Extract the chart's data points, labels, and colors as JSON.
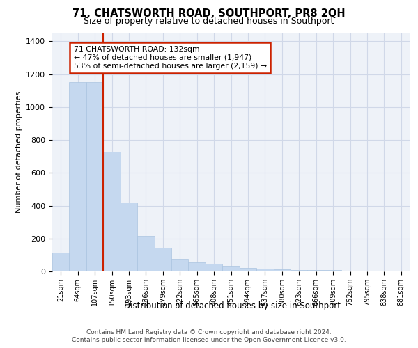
{
  "title": "71, CHATSWORTH ROAD, SOUTHPORT, PR8 2QH",
  "subtitle": "Size of property relative to detached houses in Southport",
  "xlabel": "Distribution of detached houses by size in Southport",
  "ylabel": "Number of detached properties",
  "categories": [
    "21sqm",
    "64sqm",
    "107sqm",
    "150sqm",
    "193sqm",
    "236sqm",
    "279sqm",
    "322sqm",
    "365sqm",
    "408sqm",
    "451sqm",
    "494sqm",
    "537sqm",
    "580sqm",
    "623sqm",
    "666sqm",
    "709sqm",
    "752sqm",
    "795sqm",
    "838sqm",
    "881sqm"
  ],
  "values": [
    115,
    1150,
    1150,
    730,
    420,
    215,
    145,
    75,
    55,
    45,
    35,
    20,
    15,
    13,
    10,
    10,
    10,
    2,
    0,
    0,
    5
  ],
  "bar_color": "#c5d8ef",
  "bar_edge_color": "#aac4e0",
  "annotation_line1": "71 CHATSWORTH ROAD: 132sqm",
  "annotation_line2": "← 47% of detached houses are smaller (1,947)",
  "annotation_line3": "53% of semi-detached houses are larger (2,159) →",
  "annotation_box_facecolor": "#ffffff",
  "annotation_box_edgecolor": "#cc2200",
  "vline_color": "#cc2200",
  "vline_x_index": 2.5,
  "ylim": [
    0,
    1450
  ],
  "yticks": [
    0,
    200,
    400,
    600,
    800,
    1000,
    1200,
    1400
  ],
  "grid_color": "#d0d8e8",
  "background_color": "#eef2f8",
  "footer_line1": "Contains HM Land Registry data © Crown copyright and database right 2024.",
  "footer_line2": "Contains public sector information licensed under the Open Government Licence v3.0."
}
